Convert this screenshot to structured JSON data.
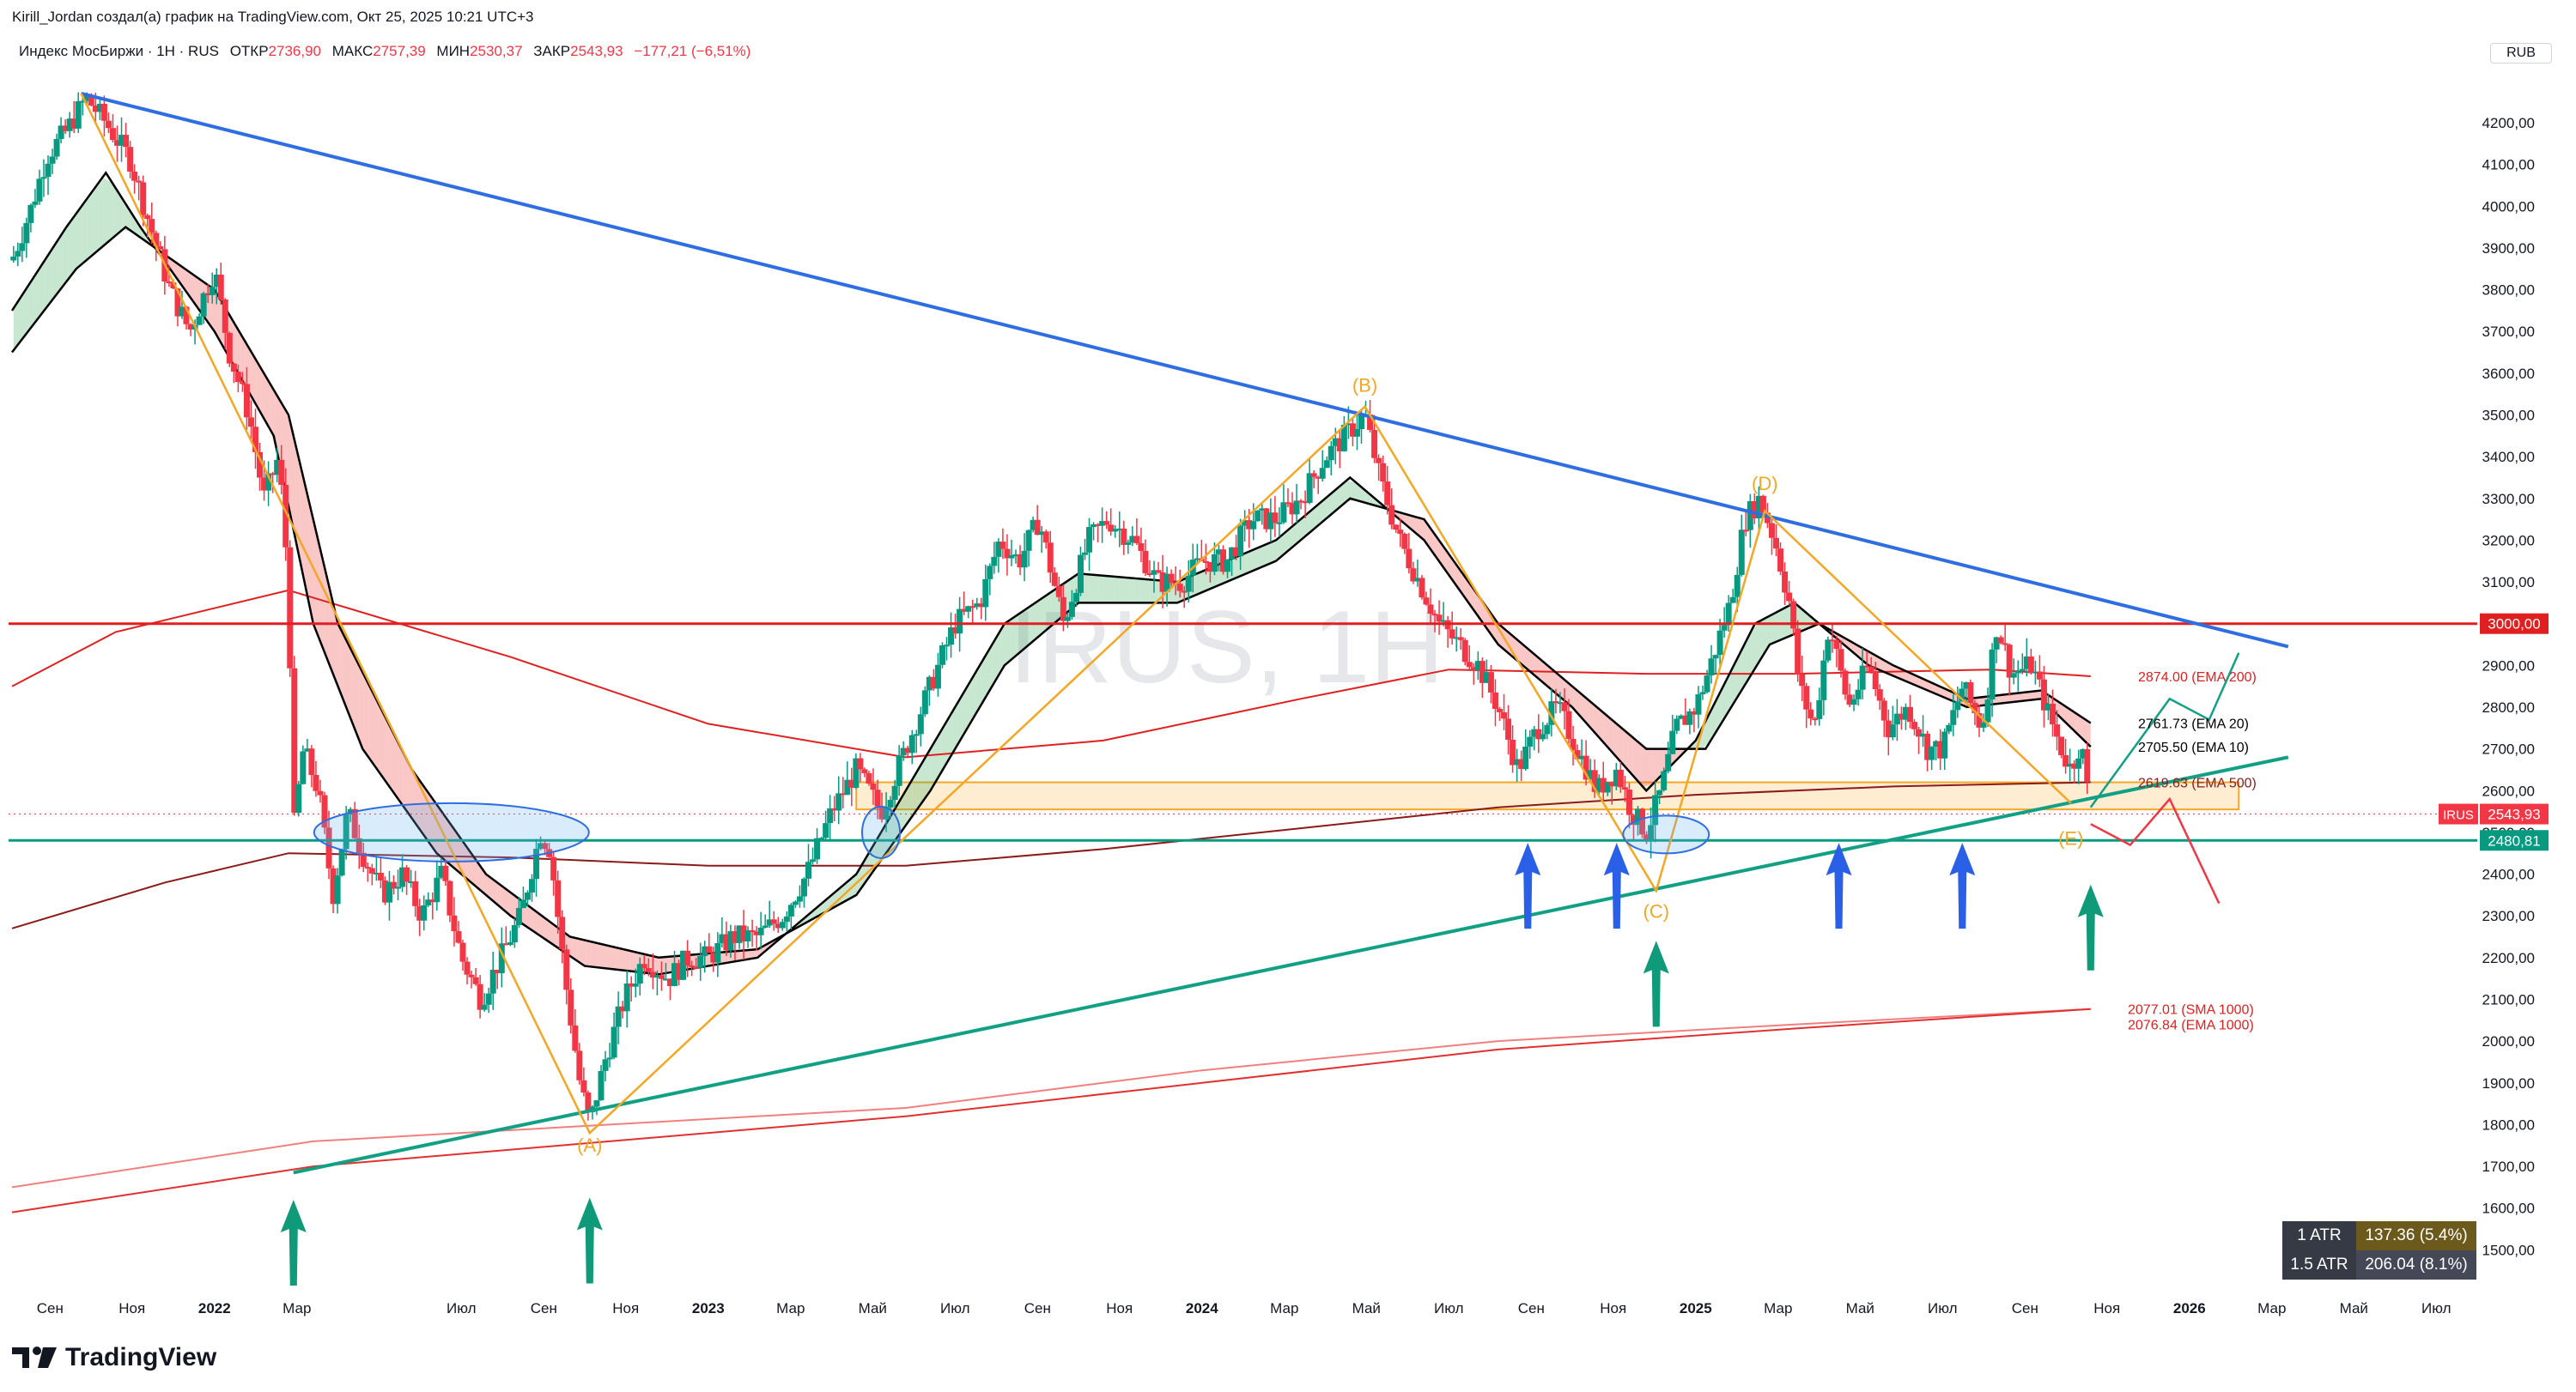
{
  "header": {
    "author_line": "Kirill_Jordan создал(а) график на TradingView.com, Окт 25, 2025 10:21 UTC+3",
    "symbol_line": "Индекс МосБиржи · 1Н · RUS",
    "ohlc": [
      {
        "label": "ОТКР",
        "value": "2736,90"
      },
      {
        "label": "МАКС",
        "value": "2757,39"
      },
      {
        "label": "МИН",
        "value": "2530,37"
      },
      {
        "label": "ЗАКР",
        "value": "2543,93"
      }
    ],
    "change": "−177,21 (−6,51%)",
    "currency": "RUB"
  },
  "watermark": "IRUS, 1H",
  "brand": "TradingView",
  "atr_table": [
    {
      "label": "1 ATR",
      "value": "137.36 (5.4%)"
    },
    {
      "label": "1.5 ATR",
      "value": "206.04 (8.1%)"
    }
  ],
  "chart_data": {
    "type": "candlestick",
    "title": "Индекс МосБиржи · 1Н · RUS",
    "y_axis": {
      "range": [
        1400,
        4350
      ],
      "ticks": [
        "1500,00",
        "1600,00",
        "1700,00",
        "1800,00",
        "1900,00",
        "2000,00",
        "2100,00",
        "2200,00",
        "2300,00",
        "2400,00",
        "2500,00",
        "2600,00",
        "2700,00",
        "2800,00",
        "2900,00",
        "3000,00",
        "3100,00",
        "3200,00",
        "3300,00",
        "3400,00",
        "3500,00",
        "3600,00",
        "3700,00",
        "3800,00",
        "3900,00",
        "4000,00",
        "4100,00",
        "4200,00"
      ]
    },
    "x_axis": {
      "range": [
        "2021-09",
        "2026-07"
      ],
      "ticks": [
        {
          "t": 2021.667,
          "label": "Сен",
          "bold": false
        },
        {
          "t": 2021.833,
          "label": "Ноя",
          "bold": false
        },
        {
          "t": 2022.0,
          "label": "2022",
          "bold": true
        },
        {
          "t": 2022.167,
          "label": "Мар",
          "bold": false
        },
        {
          "t": 2022.5,
          "label": "Июл",
          "bold": false
        },
        {
          "t": 2022.667,
          "label": "Сен",
          "bold": false
        },
        {
          "t": 2022.833,
          "label": "Ноя",
          "bold": false
        },
        {
          "t": 2023.0,
          "label": "2023",
          "bold": true
        },
        {
          "t": 2023.167,
          "label": "Мар",
          "bold": false
        },
        {
          "t": 2023.333,
          "label": "Май",
          "bold": false
        },
        {
          "t": 2023.5,
          "label": "Июл",
          "bold": false
        },
        {
          "t": 2023.667,
          "label": "Сен",
          "bold": false
        },
        {
          "t": 2023.833,
          "label": "Ноя",
          "bold": false
        },
        {
          "t": 2024.0,
          "label": "2024",
          "bold": true
        },
        {
          "t": 2024.167,
          "label": "Мар",
          "bold": false
        },
        {
          "t": 2024.333,
          "label": "Май",
          "bold": false
        },
        {
          "t": 2024.5,
          "label": "Июл",
          "bold": false
        },
        {
          "t": 2024.667,
          "label": "Сен",
          "bold": false
        },
        {
          "t": 2024.833,
          "label": "Ноя",
          "bold": false
        },
        {
          "t": 2025.0,
          "label": "2025",
          "bold": true
        },
        {
          "t": 2025.167,
          "label": "Мар",
          "bold": false
        },
        {
          "t": 2025.333,
          "label": "Май",
          "bold": false
        },
        {
          "t": 2025.5,
          "label": "Июл",
          "bold": false
        },
        {
          "t": 2025.667,
          "label": "Сен",
          "bold": false
        },
        {
          "t": 2025.833,
          "label": "Ноя",
          "bold": false
        },
        {
          "t": 2026.0,
          "label": "2026",
          "bold": true
        },
        {
          "t": 2026.167,
          "label": "Мар",
          "bold": false
        },
        {
          "t": 2026.333,
          "label": "Май",
          "bold": false
        },
        {
          "t": 2026.5,
          "label": "Июл",
          "bold": false
        }
      ]
    },
    "price_path": [
      [
        2021.59,
        3870
      ],
      [
        2021.63,
        4000
      ],
      [
        2021.66,
        4120
      ],
      [
        2021.7,
        4180
      ],
      [
        2021.74,
        4260
      ],
      [
        2021.78,
        4200
      ],
      [
        2021.83,
        4110
      ],
      [
        2021.87,
        3950
      ],
      [
        2021.91,
        3800
      ],
      [
        2021.95,
        3700
      ],
      [
        2022.0,
        3850
      ],
      [
        2022.03,
        3650
      ],
      [
        2022.07,
        3500
      ],
      [
        2022.1,
        3300
      ],
      [
        2022.13,
        3400
      ],
      [
        2022.15,
        3100
      ],
      [
        2022.16,
        2500
      ],
      [
        2022.18,
        2700
      ],
      [
        2022.21,
        2600
      ],
      [
        2022.24,
        2350
      ],
      [
        2022.27,
        2550
      ],
      [
        2022.3,
        2450
      ],
      [
        2022.34,
        2350
      ],
      [
        2022.38,
        2400
      ],
      [
        2022.42,
        2300
      ],
      [
        2022.46,
        2400
      ],
      [
        2022.5,
        2200
      ],
      [
        2022.54,
        2100
      ],
      [
        2022.58,
        2200
      ],
      [
        2022.62,
        2300
      ],
      [
        2022.66,
        2500
      ],
      [
        2022.68,
        2460
      ],
      [
        2022.71,
        2150
      ],
      [
        2022.74,
        1900
      ],
      [
        2022.76,
        1800
      ],
      [
        2022.79,
        1950
      ],
      [
        2022.83,
        2100
      ],
      [
        2022.87,
        2200
      ],
      [
        2022.92,
        2150
      ],
      [
        2022.96,
        2200
      ],
      [
        2023.0,
        2200
      ],
      [
        2023.05,
        2250
      ],
      [
        2023.1,
        2250
      ],
      [
        2023.15,
        2300
      ],
      [
        2023.2,
        2400
      ],
      [
        2023.25,
        2550
      ],
      [
        2023.3,
        2650
      ],
      [
        2023.35,
        2550
      ],
      [
        2023.4,
        2700
      ],
      [
        2023.45,
        2850
      ],
      [
        2023.5,
        3000
      ],
      [
        2023.55,
        3050
      ],
      [
        2023.59,
        3200
      ],
      [
        2023.63,
        3150
      ],
      [
        2023.67,
        3250
      ],
      [
        2023.72,
        3000
      ],
      [
        2023.77,
        3200
      ],
      [
        2023.81,
        3250
      ],
      [
        2023.86,
        3200
      ],
      [
        2023.91,
        3100
      ],
      [
        2023.96,
        3100
      ],
      [
        2024.0,
        3150
      ],
      [
        2024.05,
        3150
      ],
      [
        2024.1,
        3250
      ],
      [
        2024.15,
        3250
      ],
      [
        2024.2,
        3300
      ],
      [
        2024.25,
        3400
      ],
      [
        2024.29,
        3450
      ],
      [
        2024.33,
        3500
      ],
      [
        2024.36,
        3350
      ],
      [
        2024.4,
        3200
      ],
      [
        2024.44,
        3100
      ],
      [
        2024.48,
        3000
      ],
      [
        2024.52,
        2950
      ],
      [
        2024.56,
        2900
      ],
      [
        2024.6,
        2800
      ],
      [
        2024.64,
        2650
      ],
      [
        2024.68,
        2750
      ],
      [
        2024.72,
        2800
      ],
      [
        2024.76,
        2700
      ],
      [
        2024.8,
        2600
      ],
      [
        2024.84,
        2650
      ],
      [
        2024.87,
        2550
      ],
      [
        2024.9,
        2500
      ],
      [
        2024.93,
        2600
      ],
      [
        2024.96,
        2750
      ],
      [
        2025.0,
        2800
      ],
      [
        2025.03,
        2900
      ],
      [
        2025.07,
        3050
      ],
      [
        2025.1,
        3250
      ],
      [
        2025.13,
        3300
      ],
      [
        2025.16,
        3200
      ],
      [
        2025.19,
        3050
      ],
      [
        2025.21,
        2850
      ],
      [
        2025.24,
        2750
      ],
      [
        2025.27,
        3000
      ],
      [
        2025.31,
        2800
      ],
      [
        2025.35,
        2900
      ],
      [
        2025.39,
        2750
      ],
      [
        2025.43,
        2800
      ],
      [
        2025.47,
        2700
      ],
      [
        2025.5,
        2700
      ],
      [
        2025.54,
        2850
      ],
      [
        2025.58,
        2750
      ],
      [
        2025.61,
        3000
      ],
      [
        2025.64,
        2880
      ],
      [
        2025.68,
        2900
      ],
      [
        2025.71,
        2800
      ],
      [
        2025.74,
        2700
      ],
      [
        2025.76,
        2650
      ],
      [
        2025.78,
        2720
      ],
      [
        2025.8,
        2544
      ]
    ],
    "series": [
      {
        "name": "EMA 200",
        "color": "#e02020",
        "points": [
          [
            2021.59,
            2850
          ],
          [
            2021.8,
            2980
          ],
          [
            2022.15,
            3080
          ],
          [
            2022.6,
            2920
          ],
          [
            2023.0,
            2760
          ],
          [
            2023.4,
            2680
          ],
          [
            2023.8,
            2720
          ],
          [
            2024.2,
            2820
          ],
          [
            2024.5,
            2890
          ],
          [
            2024.9,
            2880
          ],
          [
            2025.2,
            2880
          ],
          [
            2025.6,
            2890
          ],
          [
            2025.8,
            2874
          ]
        ]
      },
      {
        "name": "EMA 500",
        "color": "#8b1a1a",
        "points": [
          [
            2021.59,
            2270
          ],
          [
            2021.9,
            2380
          ],
          [
            2022.15,
            2450
          ],
          [
            2022.6,
            2440
          ],
          [
            2023.0,
            2420
          ],
          [
            2023.4,
            2420
          ],
          [
            2023.8,
            2460
          ],
          [
            2024.2,
            2510
          ],
          [
            2024.6,
            2560
          ],
          [
            2025.0,
            2590
          ],
          [
            2025.4,
            2610
          ],
          [
            2025.8,
            2620
          ]
        ]
      },
      {
        "name": "SMA 1000",
        "color": "#f08080",
        "points": [
          [
            2021.59,
            1650
          ],
          [
            2022.2,
            1760
          ],
          [
            2022.8,
            1800
          ],
          [
            2023.4,
            1840
          ],
          [
            2024.0,
            1930
          ],
          [
            2024.6,
            2000
          ],
          [
            2025.2,
            2040
          ],
          [
            2025.8,
            2077
          ]
        ]
      },
      {
        "name": "EMA 1000",
        "color": "#e03030",
        "points": [
          [
            2021.59,
            1590
          ],
          [
            2022.2,
            1700
          ],
          [
            2022.8,
            1760
          ],
          [
            2023.4,
            1820
          ],
          [
            2024.0,
            1900
          ],
          [
            2024.6,
            1980
          ],
          [
            2025.2,
            2030
          ],
          [
            2025.8,
            2077
          ]
        ]
      },
      {
        "name": "EMA 10",
        "color": "#000000",
        "points": [
          [
            2021.59,
            3750
          ],
          [
            2021.7,
            3950
          ],
          [
            2021.78,
            4080
          ],
          [
            2021.85,
            3950
          ],
          [
            2022.0,
            3700
          ],
          [
            2022.12,
            3450
          ],
          [
            2022.2,
            3000
          ],
          [
            2022.3,
            2700
          ],
          [
            2022.45,
            2450
          ],
          [
            2022.6,
            2300
          ],
          [
            2022.75,
            2180
          ],
          [
            2022.9,
            2160
          ],
          [
            2023.1,
            2200
          ],
          [
            2023.3,
            2400
          ],
          [
            2023.45,
            2700
          ],
          [
            2023.6,
            3000
          ],
          [
            2023.75,
            3120
          ],
          [
            2023.95,
            3100
          ],
          [
            2024.15,
            3200
          ],
          [
            2024.3,
            3350
          ],
          [
            2024.45,
            3200
          ],
          [
            2024.6,
            2950
          ],
          [
            2024.75,
            2800
          ],
          [
            2024.9,
            2600
          ],
          [
            2025.0,
            2720
          ],
          [
            2025.12,
            3000
          ],
          [
            2025.2,
            3050
          ],
          [
            2025.35,
            2900
          ],
          [
            2025.55,
            2800
          ],
          [
            2025.7,
            2820
          ],
          [
            2025.8,
            2705
          ]
        ]
      },
      {
        "name": "EMA 20",
        "color": "#000000",
        "points": [
          [
            2021.59,
            3650
          ],
          [
            2021.72,
            3850
          ],
          [
            2021.82,
            3950
          ],
          [
            2022.0,
            3800
          ],
          [
            2022.15,
            3500
          ],
          [
            2022.25,
            3000
          ],
          [
            2022.4,
            2650
          ],
          [
            2022.55,
            2400
          ],
          [
            2022.72,
            2250
          ],
          [
            2022.9,
            2200
          ],
          [
            2023.1,
            2220
          ],
          [
            2023.3,
            2350
          ],
          [
            2023.45,
            2600
          ],
          [
            2023.6,
            2900
          ],
          [
            2023.75,
            3050
          ],
          [
            2023.95,
            3050
          ],
          [
            2024.15,
            3150
          ],
          [
            2024.3,
            3300
          ],
          [
            2024.45,
            3250
          ],
          [
            2024.6,
            3000
          ],
          [
            2024.75,
            2850
          ],
          [
            2024.9,
            2700
          ],
          [
            2025.02,
            2700
          ],
          [
            2025.15,
            2950
          ],
          [
            2025.25,
            3000
          ],
          [
            2025.4,
            2900
          ],
          [
            2025.55,
            2820
          ],
          [
            2025.7,
            2840
          ],
          [
            2025.8,
            2762
          ]
        ]
      }
    ],
    "annotations": {
      "horizontal_levels": [
        {
          "price": 3000,
          "label": "3000,00",
          "color": "#e02020"
        },
        {
          "price": 2480.81,
          "label": "2480,81",
          "color": "#089981"
        }
      ],
      "last_price": {
        "price": 2543.93,
        "symbol": "IRUS",
        "label": "2543,93"
      },
      "ma_labels": [
        {
          "text": "2874.00 (EMA 200)",
          "price": 2874,
          "color": "#e02020"
        },
        {
          "text": "2761.73 (EMA 20)",
          "price": 2762,
          "color": "#000000"
        },
        {
          "text": "2705.50 (EMA 10)",
          "price": 2705,
          "color": "#000000"
        },
        {
          "text": "2619.63 (EMA 500)",
          "price": 2620,
          "color": "#8b1a1a"
        },
        {
          "text": "2077.01 (SMA 1000)",
          "price": 2077,
          "color": "#e02020"
        },
        {
          "text": "2076.84 (EMA 1000)",
          "price": 2040,
          "color": "#e02020"
        }
      ],
      "wave_labels": [
        {
          "text": "(A)",
          "t": 2022.76,
          "price": 1735
        },
        {
          "text": "(B)",
          "t": 2024.33,
          "price": 3555
        },
        {
          "text": "(C)",
          "t": 2024.92,
          "price": 2295
        },
        {
          "text": "(D)",
          "t": 2025.14,
          "price": 3320
        },
        {
          "text": "(E)",
          "t": 2025.76,
          "price": 2470
        }
      ],
      "trend_lines": [
        {
          "name": "resistance",
          "color": "#2f6ee0",
          "from": [
            2021.73,
            4270
          ],
          "to": [
            2026.2,
            2945
          ]
        },
        {
          "name": "support",
          "color": "#12a085",
          "from": [
            2022.16,
            1685
          ],
          "to": [
            2026.2,
            2680
          ]
        }
      ],
      "up_arrows_green": [
        2022.16,
        2022.76,
        2024.92,
        2025.8
      ],
      "up_arrows_blue": [
        2024.66,
        2024.84,
        2025.29,
        2025.54
      ],
      "zone": {
        "t_from": 2023.3,
        "t_to": 2026.1,
        "price_from": 2555,
        "price_to": 2620
      }
    }
  }
}
